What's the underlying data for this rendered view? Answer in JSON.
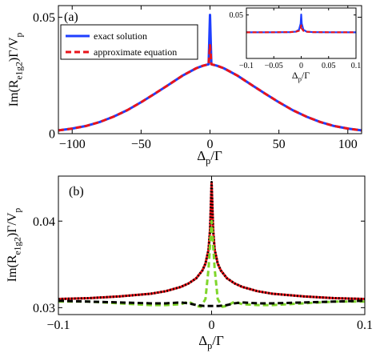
{
  "chart_data": [
    {
      "type": "line",
      "panel_label": "(a)",
      "xlabel": "Δp/Γ",
      "ylabel": "Im(R_e1g2)Γ/V_p",
      "xlim": [
        -110,
        110
      ],
      "ylim": [
        0,
        0.055
      ],
      "xticks": [
        -100,
        -50,
        0,
        50,
        100
      ],
      "xtick_labels": [
        "−100",
        "−50",
        "0",
        "50",
        "100"
      ],
      "yticks": [
        0,
        0.05
      ],
      "ytick_labels": [
        "0",
        "0.05"
      ],
      "legend_position": "top-left",
      "series": [
        {
          "name": "exact solution",
          "color": "#1f3fff",
          "style": "solid",
          "x": [
            -110,
            -100,
            -90,
            -80,
            -70,
            -60,
            -50,
            -40,
            -30,
            -20,
            -10,
            -5,
            -1,
            0,
            1,
            5,
            10,
            20,
            30,
            40,
            50,
            60,
            70,
            80,
            90,
            100,
            110
          ],
          "y": [
            0.0014,
            0.0022,
            0.0033,
            0.005,
            0.0073,
            0.0101,
            0.0135,
            0.0172,
            0.021,
            0.0249,
            0.0281,
            0.0292,
            0.0298,
            0.051,
            0.0298,
            0.0292,
            0.0281,
            0.0249,
            0.021,
            0.0172,
            0.0135,
            0.0101,
            0.0073,
            0.005,
            0.0033,
            0.0022,
            0.0014
          ]
        },
        {
          "name": "approximate equation",
          "color": "#e8141a",
          "style": "dashed",
          "x": [
            -110,
            -100,
            -90,
            -80,
            -70,
            -60,
            -50,
            -40,
            -30,
            -20,
            -10,
            -5,
            -1,
            0,
            1,
            5,
            10,
            20,
            30,
            40,
            50,
            60,
            70,
            80,
            90,
            100,
            110
          ],
          "y": [
            0.0014,
            0.0022,
            0.0033,
            0.005,
            0.0073,
            0.0101,
            0.0135,
            0.0172,
            0.021,
            0.0249,
            0.0281,
            0.0292,
            0.0298,
            0.038,
            0.0298,
            0.0292,
            0.0281,
            0.0249,
            0.021,
            0.0172,
            0.0135,
            0.0101,
            0.0073,
            0.005,
            0.0033,
            0.0022,
            0.0014
          ]
        }
      ],
      "inset": {
        "type": "line",
        "xlabel": "Δp/Γ",
        "xlim": [
          -0.1,
          0.1
        ],
        "ylim": [
          0,
          0.058
        ],
        "xticks": [
          -0.1,
          -0.05,
          0,
          0.05,
          0.1
        ],
        "xtick_labels": [
          "−0.1",
          "−0.05",
          "0",
          "0.05",
          "0.1"
        ],
        "yticks": [
          0.05
        ],
        "ytick_labels": [
          "0.05"
        ],
        "series": [
          {
            "name": "exact solution",
            "color": "#1f3fff",
            "style": "solid",
            "x": [
              -0.1,
              -0.05,
              -0.02,
              -0.01,
              -0.004,
              -0.001,
              0,
              0.001,
              0.004,
              0.01,
              0.02,
              0.05,
              0.1
            ],
            "y": [
              0.03,
              0.0301,
              0.0303,
              0.0308,
              0.033,
              0.04,
              0.0505,
              0.04,
              0.033,
              0.0308,
              0.0303,
              0.0301,
              0.03
            ]
          },
          {
            "name": "approximate equation",
            "color": "#e8141a",
            "style": "dashed",
            "x": [
              -0.1,
              -0.05,
              -0.02,
              -0.01,
              -0.004,
              -0.001,
              0,
              0.001,
              0.004,
              0.01,
              0.02,
              0.05,
              0.1
            ],
            "y": [
              0.03,
              0.0301,
              0.0303,
              0.0307,
              0.0318,
              0.0345,
              0.038,
              0.0345,
              0.0318,
              0.0307,
              0.0303,
              0.0301,
              0.03
            ]
          }
        ]
      }
    },
    {
      "type": "line",
      "panel_label": "(b)",
      "xlabel": "Δp/Γ",
      "ylabel": "Im(R_e1g2)Γ/V_p",
      "xlim": [
        -0.1,
        0.1
      ],
      "ylim": [
        0.0292,
        0.0452
      ],
      "xticks": [
        -0.1,
        0,
        0.1
      ],
      "xtick_labels": [
        "−0.1",
        "0",
        "0.1"
      ],
      "yticks": [
        0.03,
        0.04
      ],
      "ytick_labels": [
        "0.03",
        "0.04"
      ],
      "series": [
        {
          "color": "#e8141a",
          "style": "solid",
          "x": [
            -0.1,
            -0.08,
            -0.06,
            -0.04,
            -0.03,
            -0.02,
            -0.015,
            -0.01,
            -0.006,
            -0.004,
            -0.002,
            -0.001,
            0,
            0.001,
            0.002,
            0.004,
            0.006,
            0.01,
            0.015,
            0.02,
            0.03,
            0.04,
            0.06,
            0.08,
            0.1
          ],
          "y": [
            0.031,
            0.0311,
            0.0313,
            0.0316,
            0.0319,
            0.0324,
            0.0328,
            0.0334,
            0.0343,
            0.0351,
            0.0367,
            0.039,
            0.0445,
            0.039,
            0.0367,
            0.0351,
            0.0343,
            0.0334,
            0.0328,
            0.0324,
            0.0319,
            0.0316,
            0.0313,
            0.0311,
            0.031
          ]
        },
        {
          "color": "#000000",
          "style": "dotted",
          "x": [
            -0.1,
            -0.08,
            -0.06,
            -0.04,
            -0.03,
            -0.02,
            -0.015,
            -0.01,
            -0.006,
            -0.004,
            -0.002,
            -0.001,
            0,
            0.001,
            0.002,
            0.004,
            0.006,
            0.01,
            0.015,
            0.02,
            0.03,
            0.04,
            0.06,
            0.08,
            0.1
          ],
          "y": [
            0.031,
            0.0311,
            0.0313,
            0.0316,
            0.0319,
            0.0324,
            0.0328,
            0.0334,
            0.0343,
            0.0351,
            0.0367,
            0.039,
            0.0445,
            0.039,
            0.0367,
            0.0351,
            0.0343,
            0.0334,
            0.0328,
            0.0324,
            0.0319,
            0.0316,
            0.0313,
            0.0311,
            0.031
          ]
        },
        {
          "color": "#7fd62a",
          "style": "dashed",
          "x": [
            -0.1,
            -0.08,
            -0.06,
            -0.04,
            -0.03,
            -0.02,
            -0.015,
            -0.01,
            -0.007,
            -0.004,
            -0.002,
            0,
            0.002,
            0.004,
            0.007,
            0.01,
            0.015,
            0.02,
            0.03,
            0.04,
            0.06,
            0.08,
            0.1
          ],
          "y": [
            0.0307,
            0.0307,
            0.0305,
            0.0303,
            0.0303,
            0.0304,
            0.0307,
            0.0302,
            0.0301,
            0.031,
            0.0345,
            0.04,
            0.0345,
            0.031,
            0.0301,
            0.0302,
            0.0307,
            0.0304,
            0.0303,
            0.0303,
            0.0305,
            0.0307,
            0.0307
          ]
        },
        {
          "color": "#000000",
          "style": "dashed",
          "x": [
            -0.1,
            -0.08,
            -0.06,
            -0.04,
            -0.03,
            -0.02,
            -0.015,
            -0.01,
            -0.005,
            0,
            0.005,
            0.01,
            0.015,
            0.02,
            0.03,
            0.04,
            0.06,
            0.08,
            0.1
          ],
          "y": [
            0.0308,
            0.0307,
            0.0306,
            0.0305,
            0.0305,
            0.0306,
            0.0305,
            0.0303,
            0.0302,
            0.0302,
            0.0302,
            0.0303,
            0.0305,
            0.0306,
            0.0305,
            0.0305,
            0.0306,
            0.0307,
            0.0308
          ]
        }
      ]
    }
  ]
}
